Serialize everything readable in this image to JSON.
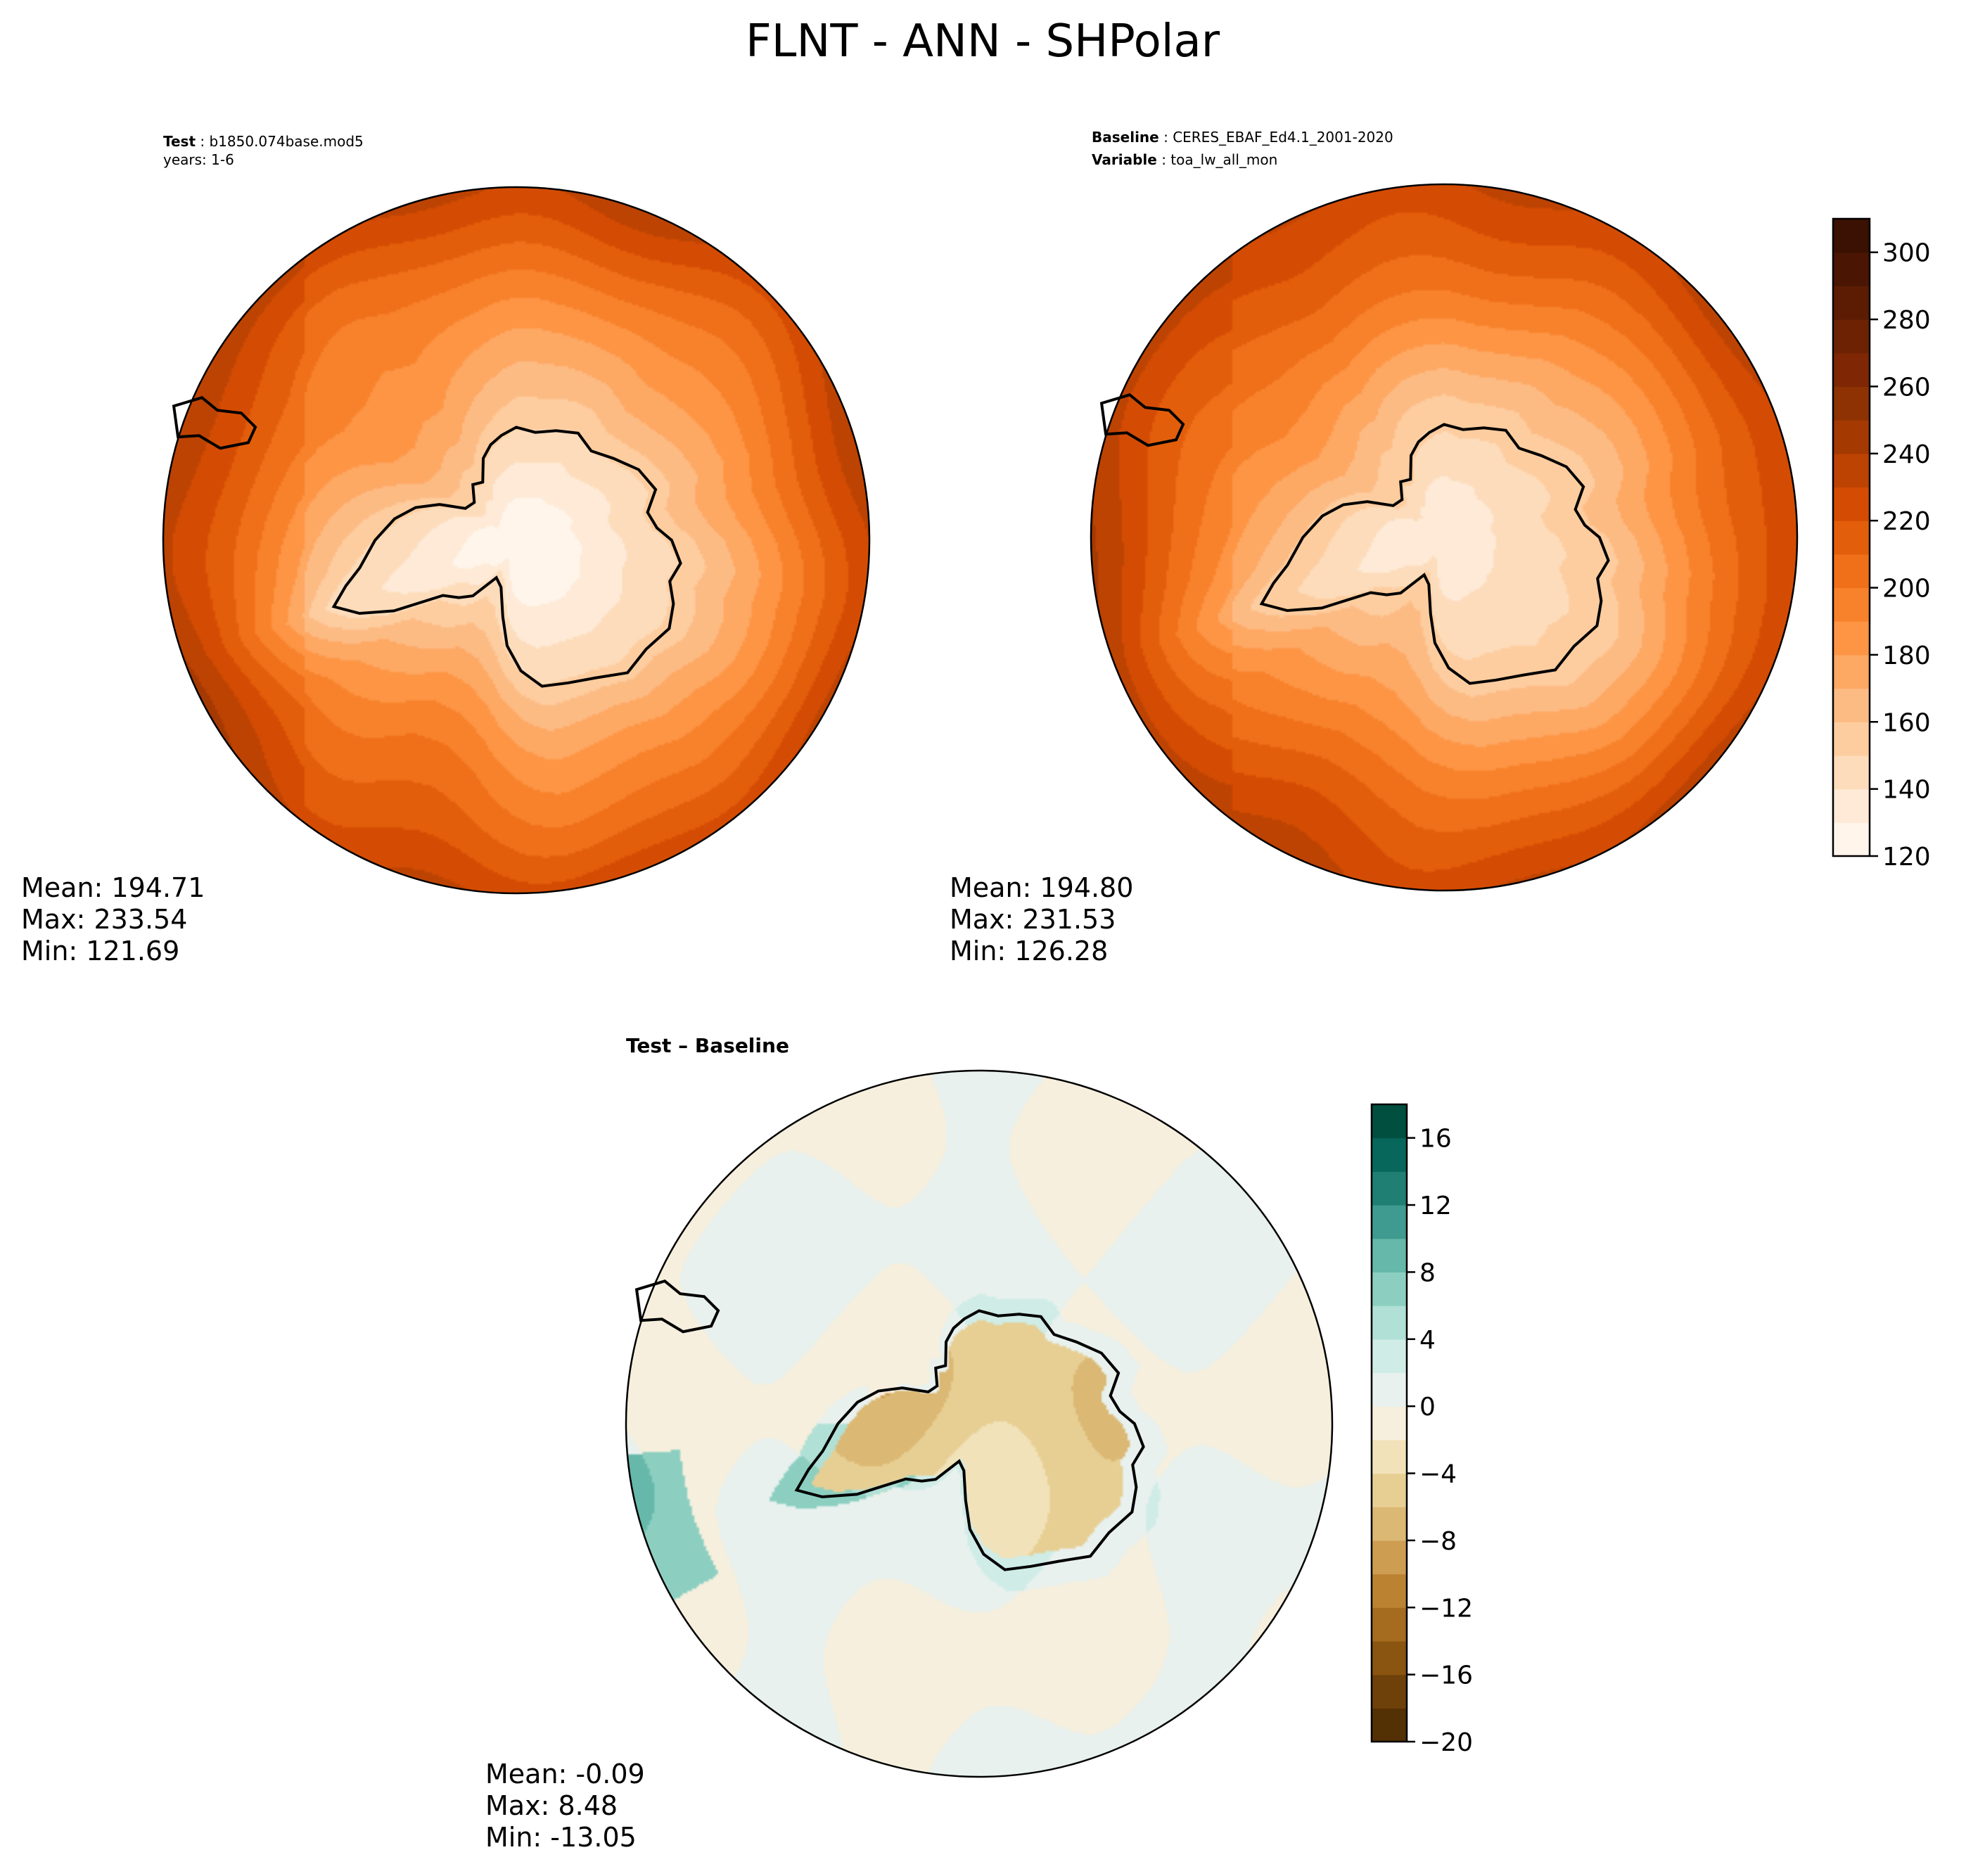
{
  "chart_data": [
    {
      "type": "heatmap",
      "panel": "test",
      "projection": "south-polar-stereographic",
      "header": {
        "label": "Test",
        "case": "b1850.074base.mod5",
        "line2": "years: 1-6"
      },
      "stats": {
        "mean": "Mean: 194.71",
        "max": "Max: 233.54",
        "min": "Min: 121.69"
      },
      "field": {
        "pole_value": 125,
        "coast_value": 150,
        "edge_value": 230,
        "asymmetry": 6
      }
    },
    {
      "type": "heatmap",
      "panel": "baseline",
      "projection": "south-polar-stereographic",
      "header": {
        "label": "Baseline",
        "case": "CERES_EBAF_Ed4.1_2001-2020",
        "label2": "Variable",
        "variable": "toa_lw_all_mon"
      },
      "stats": {
        "mean": "Mean: 194.80",
        "max": "Max: 231.53",
        "min": "Min: 126.28"
      },
      "field": {
        "pole_value": 132,
        "coast_value": 155,
        "edge_value": 230,
        "asymmetry": 5
      }
    },
    {
      "type": "heatmap",
      "panel": "difference",
      "projection": "south-polar-stereographic",
      "header": {
        "label": "Test – Baseline"
      },
      "stats": {
        "mean": "Mean: -0.09",
        "max": "Max:  8.48",
        "min": "Min: -13.05"
      },
      "field": {
        "interior_value": -5,
        "coast_value": 6,
        "ocean_value": 0
      }
    }
  ],
  "figure": {
    "title": "FLNT - ANN - SHPolar"
  },
  "colorbars": {
    "main": {
      "min": 120,
      "max": 310,
      "step": 10,
      "tick_labels": [
        "120",
        "140",
        "160",
        "180",
        "200",
        "220",
        "240",
        "260",
        "280",
        "300"
      ],
      "colors": [
        "#fff5eb",
        "#feead6",
        "#fddcbb",
        "#fdcd9f",
        "#fdbb84",
        "#fda863",
        "#fd9545",
        "#f8822b",
        "#f0701a",
        "#e35e0b",
        "#d44c03",
        "#bd4302",
        "#a43902",
        "#8f3203",
        "#7f2704",
        "#6e2204",
        "#5c1c03",
        "#4a1603",
        "#3a1102"
      ]
    },
    "diff": {
      "min": -20,
      "max": 18,
      "step": 2,
      "tick_labels": [
        "−20",
        "−16",
        "−12",
        "−8",
        "−4",
        "0",
        "4",
        "8",
        "12",
        "16"
      ],
      "colors": [
        "#543005",
        "#6f410a",
        "#8a5510",
        "#a56b1e",
        "#bb8232",
        "#cd9d52",
        "#dbb873",
        "#e7cf94",
        "#f1e2b9",
        "#f6efdd",
        "#e8f1ee",
        "#cfece6",
        "#b0e0d6",
        "#8ccfc1",
        "#65b8aa",
        "#3f9b8f",
        "#1f7f73",
        "#08675b",
        "#01503f"
      ]
    }
  },
  "colors": {
    "coast": "#000000",
    "frame": "#000000"
  }
}
